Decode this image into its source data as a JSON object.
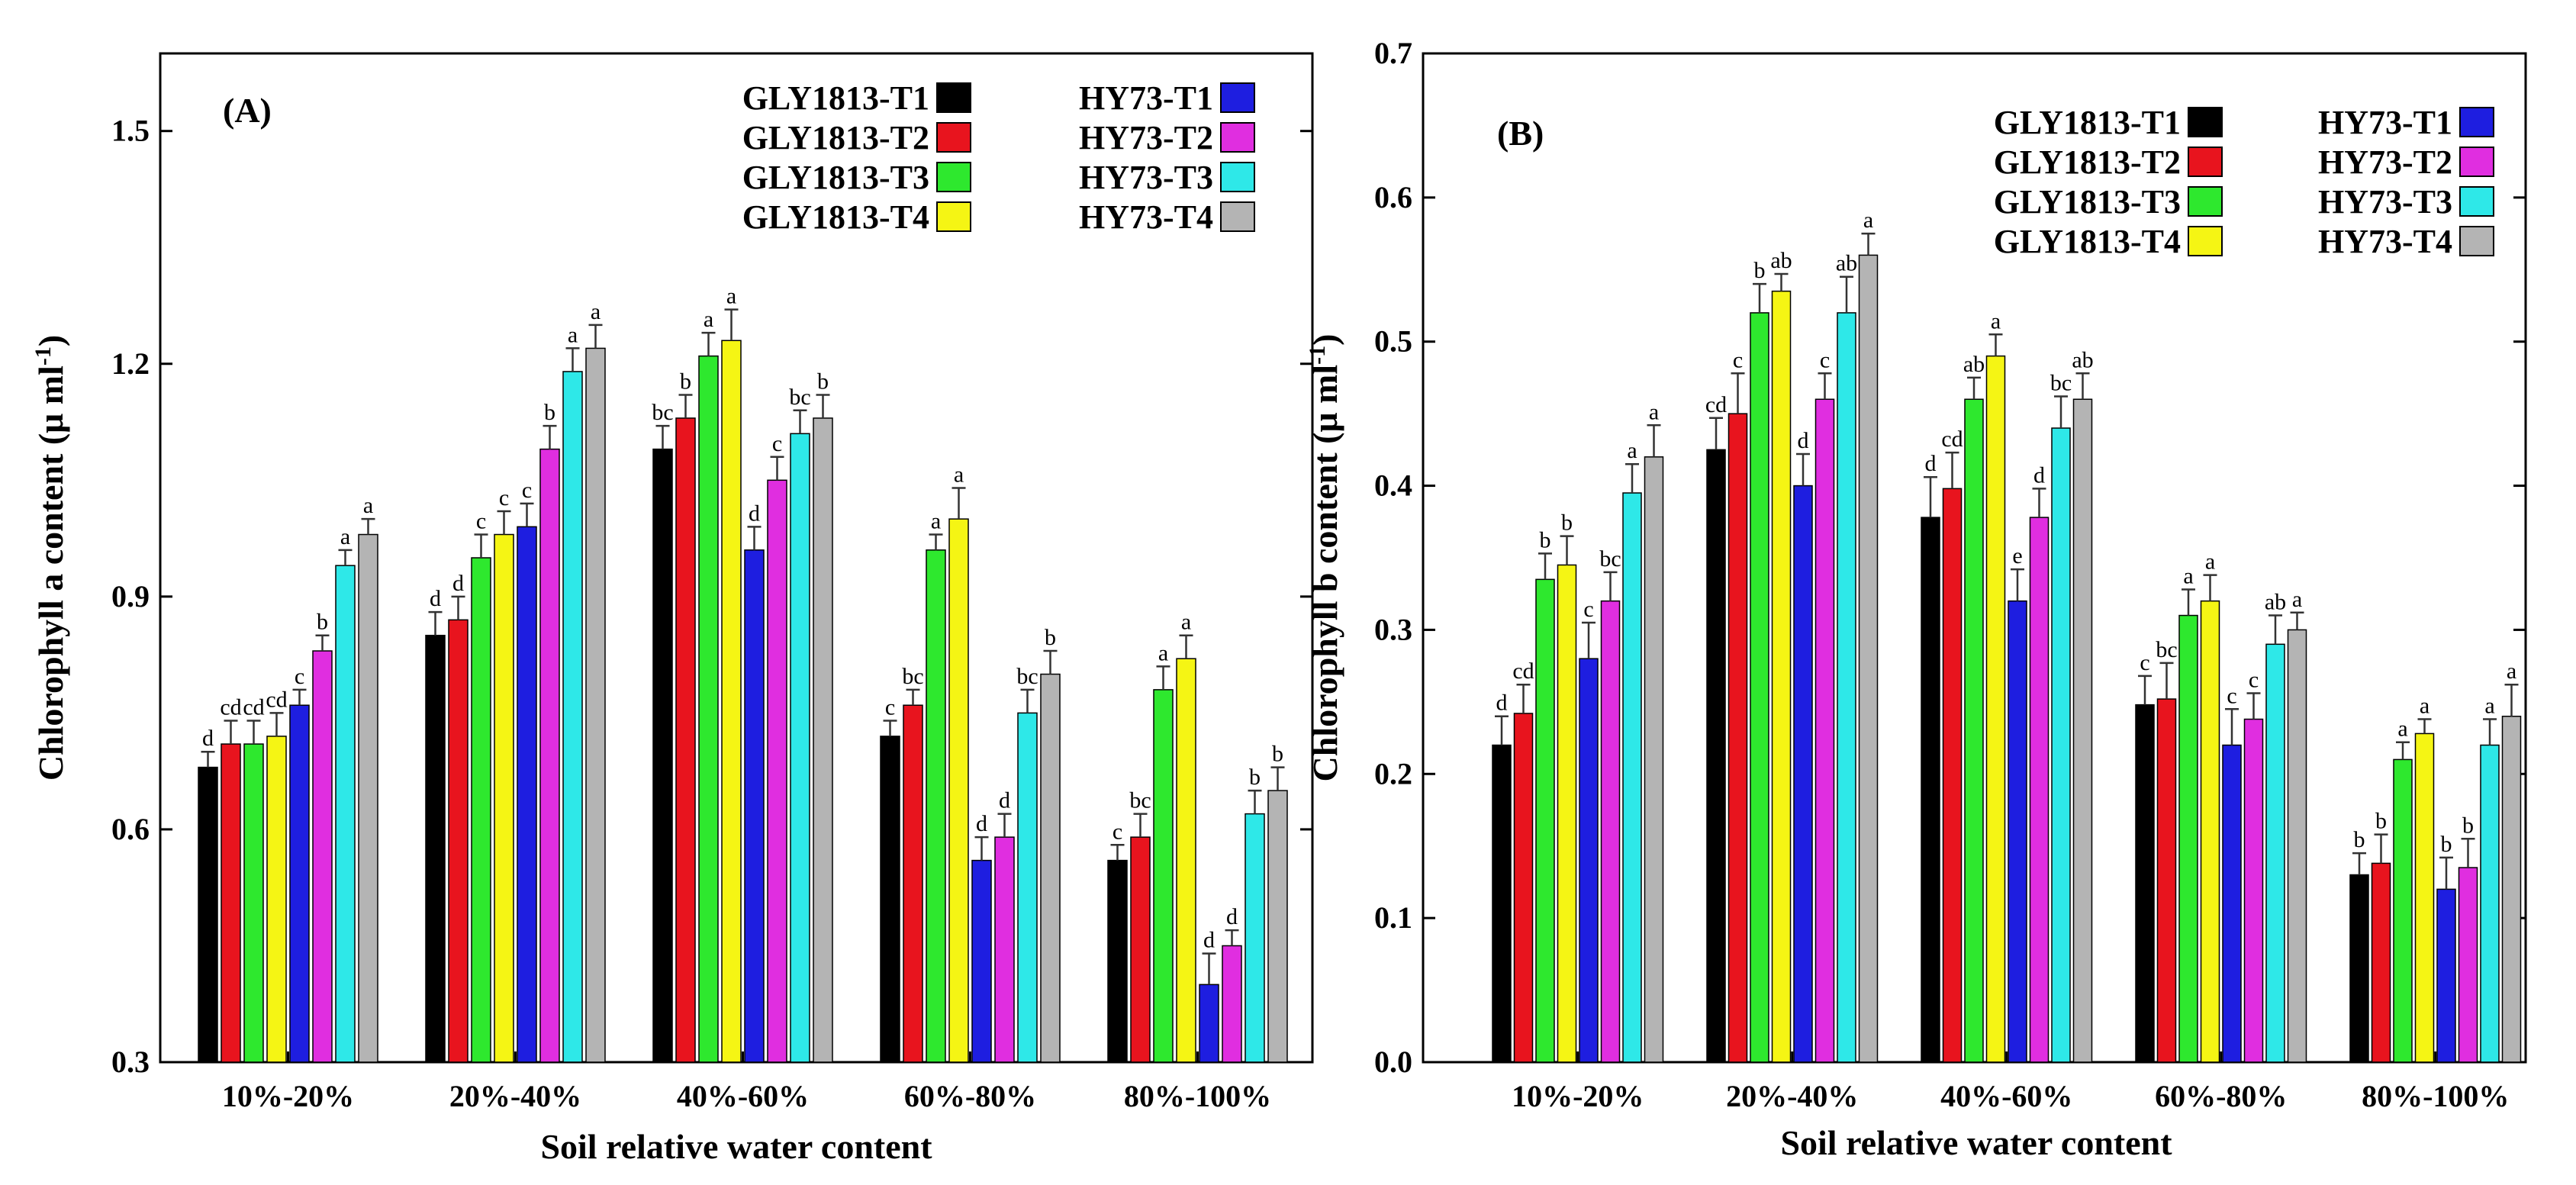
{
  "colors": {
    "GLY1813-T1": "#000000",
    "GLY1813-T2": "#e8141e",
    "GLY1813-T3": "#2ee82e",
    "GLY1813-T4": "#f5f514",
    "HY73-T1": "#1e1ee0",
    "HY73-T2": "#e02ee0",
    "HY73-T3": "#2ee8e8",
    "HY73-T4": "#b4b4b4"
  },
  "chart_data": [
    {
      "type": "bar",
      "panel_label": "(A)",
      "xlabel": "Soil relative water content",
      "ylabel": "Chlorophyll a content (μ ml",
      "ylabel_sup": "-1",
      "ylabel_close": ")",
      "ylim": [
        0.3,
        1.6
      ],
      "yticks": [
        "0.3",
        "0.6",
        "0.9",
        "1.2",
        "1.5"
      ],
      "ytick_values": [
        0.3,
        0.6,
        0.9,
        1.2,
        1.5
      ],
      "categories": [
        "10%-20%",
        "20%-40%",
        "40%-60%",
        "60%-80%",
        "80%-100%"
      ],
      "legend_placement": "top-right",
      "series": [
        {
          "name": "GLY1813-T1",
          "values": [
            0.68,
            0.85,
            1.09,
            0.72,
            0.56
          ],
          "errors": [
            0.02,
            0.03,
            0.03,
            0.02,
            0.02
          ],
          "labels": [
            "d",
            "d",
            "bc",
            "c",
            "c"
          ]
        },
        {
          "name": "GLY1813-T2",
          "values": [
            0.71,
            0.87,
            1.13,
            0.76,
            0.59
          ],
          "errors": [
            0.03,
            0.03,
            0.03,
            0.02,
            0.03
          ],
          "labels": [
            "cd",
            "d",
            "b",
            "bc",
            "bc"
          ]
        },
        {
          "name": "GLY1813-T3",
          "values": [
            0.71,
            0.95,
            1.21,
            0.96,
            0.78
          ],
          "errors": [
            0.03,
            0.03,
            0.03,
            0.02,
            0.03
          ],
          "labels": [
            "cd",
            "c",
            "a",
            "a",
            "a"
          ]
        },
        {
          "name": "GLY1813-T4",
          "values": [
            0.72,
            0.98,
            1.23,
            1.0,
            0.82
          ],
          "errors": [
            0.03,
            0.03,
            0.04,
            0.04,
            0.03
          ],
          "labels": [
            "cd",
            "c",
            "a",
            "a",
            "a"
          ]
        },
        {
          "name": "HY73-T1",
          "values": [
            0.76,
            0.99,
            0.96,
            0.56,
            0.4
          ],
          "errors": [
            0.02,
            0.03,
            0.03,
            0.03,
            0.04
          ],
          "labels": [
            "c",
            "c",
            "d",
            "d",
            "d"
          ]
        },
        {
          "name": "HY73-T2",
          "values": [
            0.83,
            1.09,
            1.05,
            0.59,
            0.45
          ],
          "errors": [
            0.02,
            0.03,
            0.03,
            0.03,
            0.02
          ],
          "labels": [
            "b",
            "b",
            "c",
            "d",
            "d"
          ]
        },
        {
          "name": "HY73-T3",
          "values": [
            0.94,
            1.19,
            1.11,
            0.75,
            0.62
          ],
          "errors": [
            0.02,
            0.03,
            0.03,
            0.03,
            0.03
          ],
          "labels": [
            "a",
            "a",
            "bc",
            "bc",
            "b"
          ]
        },
        {
          "name": "HY73-T4",
          "values": [
            0.98,
            1.22,
            1.13,
            0.8,
            0.65
          ],
          "errors": [
            0.02,
            0.03,
            0.03,
            0.03,
            0.03
          ],
          "labels": [
            "a",
            "a",
            "b",
            "b",
            "b"
          ]
        }
      ]
    },
    {
      "type": "bar",
      "panel_label": "(B)",
      "xlabel": "Soil relative water content",
      "ylabel": "Chlorophyll b content (μ ml",
      "ylabel_sup": "-1",
      "ylabel_close": ")",
      "ylim": [
        0.0,
        0.7
      ],
      "yticks": [
        "0.0",
        "0.1",
        "0.2",
        "0.3",
        "0.4",
        "0.5",
        "0.6",
        "0.7"
      ],
      "ytick_values": [
        0.0,
        0.1,
        0.2,
        0.3,
        0.4,
        0.5,
        0.6,
        0.7
      ],
      "categories": [
        "10%-20%",
        "20%-40%",
        "40%-60%",
        "60%-80%",
        "80%-100%"
      ],
      "legend_placement": "top-right",
      "series": [
        {
          "name": "GLY1813-T1",
          "values": [
            0.22,
            0.425,
            0.378,
            0.248,
            0.13
          ],
          "errors": [
            0.02,
            0.022,
            0.028,
            0.02,
            0.015
          ],
          "labels": [
            "d",
            "cd",
            "d",
            "c",
            "b"
          ]
        },
        {
          "name": "GLY1813-T2",
          "values": [
            0.242,
            0.45,
            0.398,
            0.252,
            0.138
          ],
          "errors": [
            0.02,
            0.028,
            0.025,
            0.025,
            0.02
          ],
          "labels": [
            "cd",
            "c",
            "cd",
            "bc",
            "b"
          ]
        },
        {
          "name": "GLY1813-T3",
          "values": [
            0.335,
            0.52,
            0.46,
            0.31,
            0.21
          ],
          "errors": [
            0.018,
            0.02,
            0.015,
            0.018,
            0.012
          ],
          "labels": [
            "b",
            "b",
            "ab",
            "a",
            "a"
          ]
        },
        {
          "name": "GLY1813-T4",
          "values": [
            0.345,
            0.535,
            0.49,
            0.32,
            0.228
          ],
          "errors": [
            0.02,
            0.012,
            0.015,
            0.018,
            0.01
          ],
          "labels": [
            "b",
            "ab",
            "a",
            "a",
            "a"
          ]
        },
        {
          "name": "HY73-T1",
          "values": [
            0.28,
            0.4,
            0.32,
            0.22,
            0.12
          ],
          "errors": [
            0.025,
            0.022,
            0.022,
            0.025,
            0.022
          ],
          "labels": [
            "c",
            "d",
            "e",
            "c",
            "b"
          ]
        },
        {
          "name": "HY73-T2",
          "values": [
            0.32,
            0.46,
            0.378,
            0.238,
            0.135
          ],
          "errors": [
            0.02,
            0.018,
            0.02,
            0.018,
            0.02
          ],
          "labels": [
            "bc",
            "c",
            "d",
            "c",
            "b"
          ]
        },
        {
          "name": "HY73-T3",
          "values": [
            0.395,
            0.52,
            0.44,
            0.29,
            0.22
          ],
          "errors": [
            0.02,
            0.025,
            0.022,
            0.02,
            0.018
          ],
          "labels": [
            "a",
            "ab",
            "bc",
            "ab",
            "a"
          ]
        },
        {
          "name": "HY73-T4",
          "values": [
            0.42,
            0.56,
            0.46,
            0.3,
            0.24
          ],
          "errors": [
            0.022,
            0.015,
            0.018,
            0.012,
            0.022
          ],
          "labels": [
            "a",
            "a",
            "ab",
            "a",
            "a"
          ]
        }
      ]
    }
  ]
}
